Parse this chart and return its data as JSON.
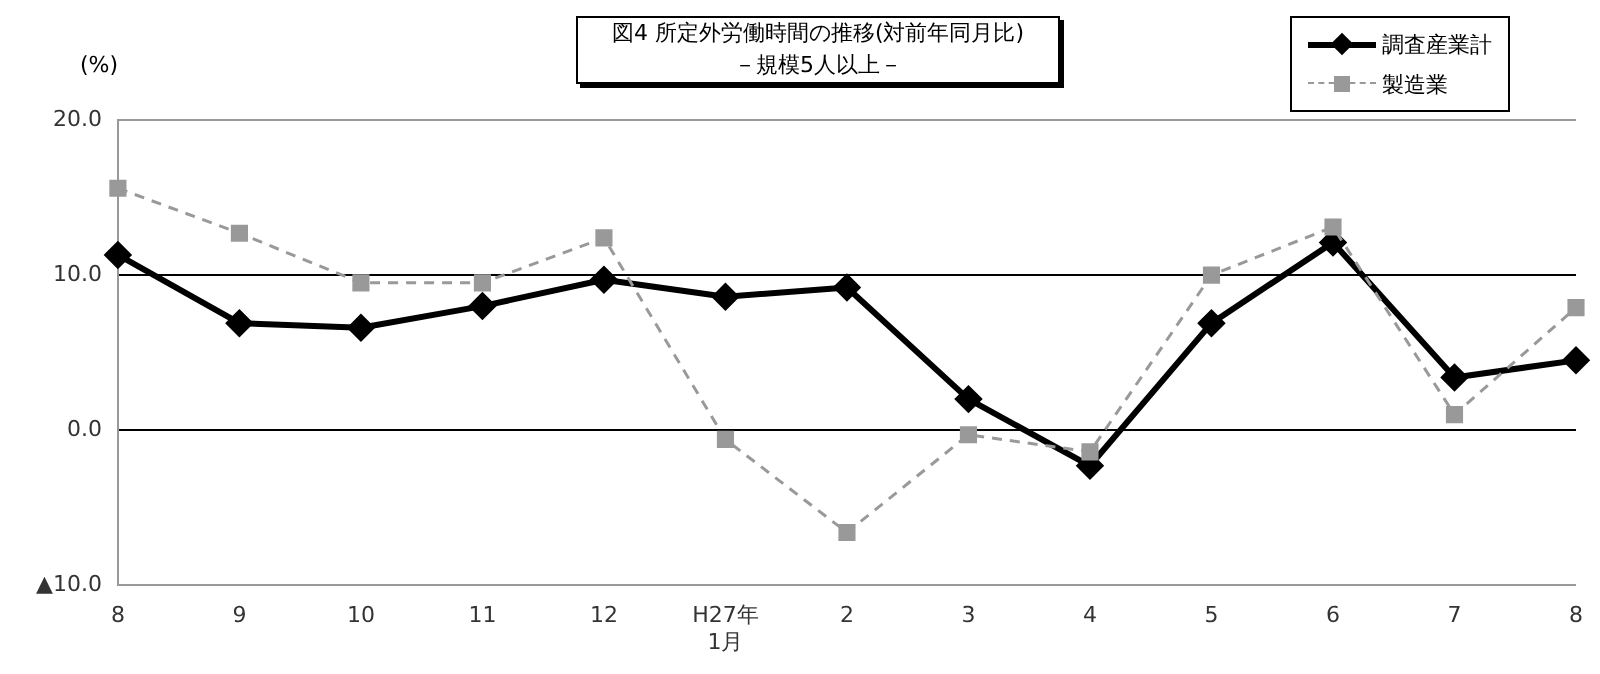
{
  "chart_data": {
    "type": "line",
    "title": "図4  所定外労働時間の推移(対前年同月比)",
    "subtitle": "－規模5人以上－",
    "ylabel": "(%)",
    "categories": [
      "8",
      "9",
      "10",
      "11",
      "12",
      "H27年\n1月",
      "2",
      "3",
      "4",
      "5",
      "6",
      "7",
      "8"
    ],
    "series": [
      {
        "name": "調査産業計",
        "color": "#000000",
        "marker": "diamond",
        "line_style": "solid",
        "values": [
          11.3,
          6.9,
          6.6,
          8.0,
          9.7,
          8.6,
          9.2,
          2.0,
          -2.3,
          6.9,
          12.1,
          3.4,
          4.5
        ]
      },
      {
        "name": "製造業",
        "color": "#999999",
        "marker": "square",
        "line_style": "dashed",
        "values": [
          15.6,
          12.7,
          9.5,
          9.5,
          12.4,
          -0.6,
          -6.6,
          -0.3,
          -1.4,
          10.0,
          13.1,
          1.0,
          7.9
        ]
      }
    ],
    "ylim": [
      -10,
      20
    ],
    "yticks": [
      {
        "value": -10,
        "label": "▲10.0"
      },
      {
        "value": 0,
        "label": "0.0"
      },
      {
        "value": 10,
        "label": "10.0"
      },
      {
        "value": 20,
        "label": "20.0"
      }
    ],
    "grid": "y",
    "legend": "top right"
  }
}
